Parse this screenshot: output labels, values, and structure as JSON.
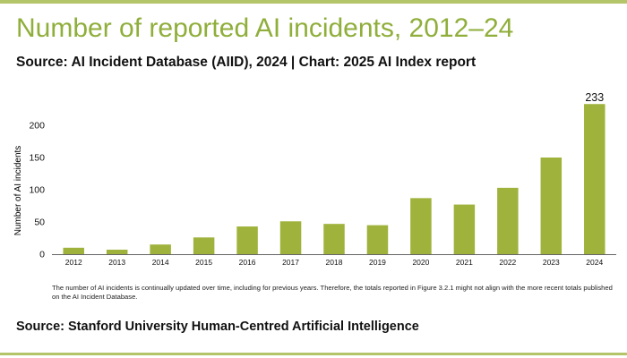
{
  "page": {
    "title": "Number of reported AI incidents, 2012–24",
    "subtitle": "Source: AI Incident Database (AIID), 2024 | Chart: 2025 AI Index report",
    "note": "The number of AI incidents is continually updated over time, including for previous years. Therefore, the totals reported in Figure 3.2.1 might not align with the more recent totals published on the AI Incident Database.",
    "footer_source": "Source: Stanford University Human-Centred Artificial Intelligence"
  },
  "colors": {
    "accent": "#8fae3a",
    "bar": "#9fb33c",
    "rule": "#b4c468",
    "axis": "#333333"
  },
  "chart_data": {
    "type": "bar",
    "categories": [
      "2012",
      "2013",
      "2014",
      "2015",
      "2016",
      "2017",
      "2018",
      "2019",
      "2020",
      "2021",
      "2022",
      "2023",
      "2024"
    ],
    "values": [
      10,
      7,
      15,
      26,
      43,
      51,
      47,
      45,
      87,
      77,
      103,
      150,
      233
    ],
    "data_labels": [
      "",
      "",
      "",
      "",
      "",
      "",
      "",
      "",
      "",
      "",
      "",
      "",
      "233"
    ],
    "title": "Number of reported AI incidents, 2012–24",
    "xlabel": "",
    "ylabel": "Number of AI incidents",
    "ylim": [
      0,
      250
    ],
    "yticks": [
      0,
      50,
      100,
      150,
      200
    ],
    "grid": false,
    "legend": "none"
  }
}
